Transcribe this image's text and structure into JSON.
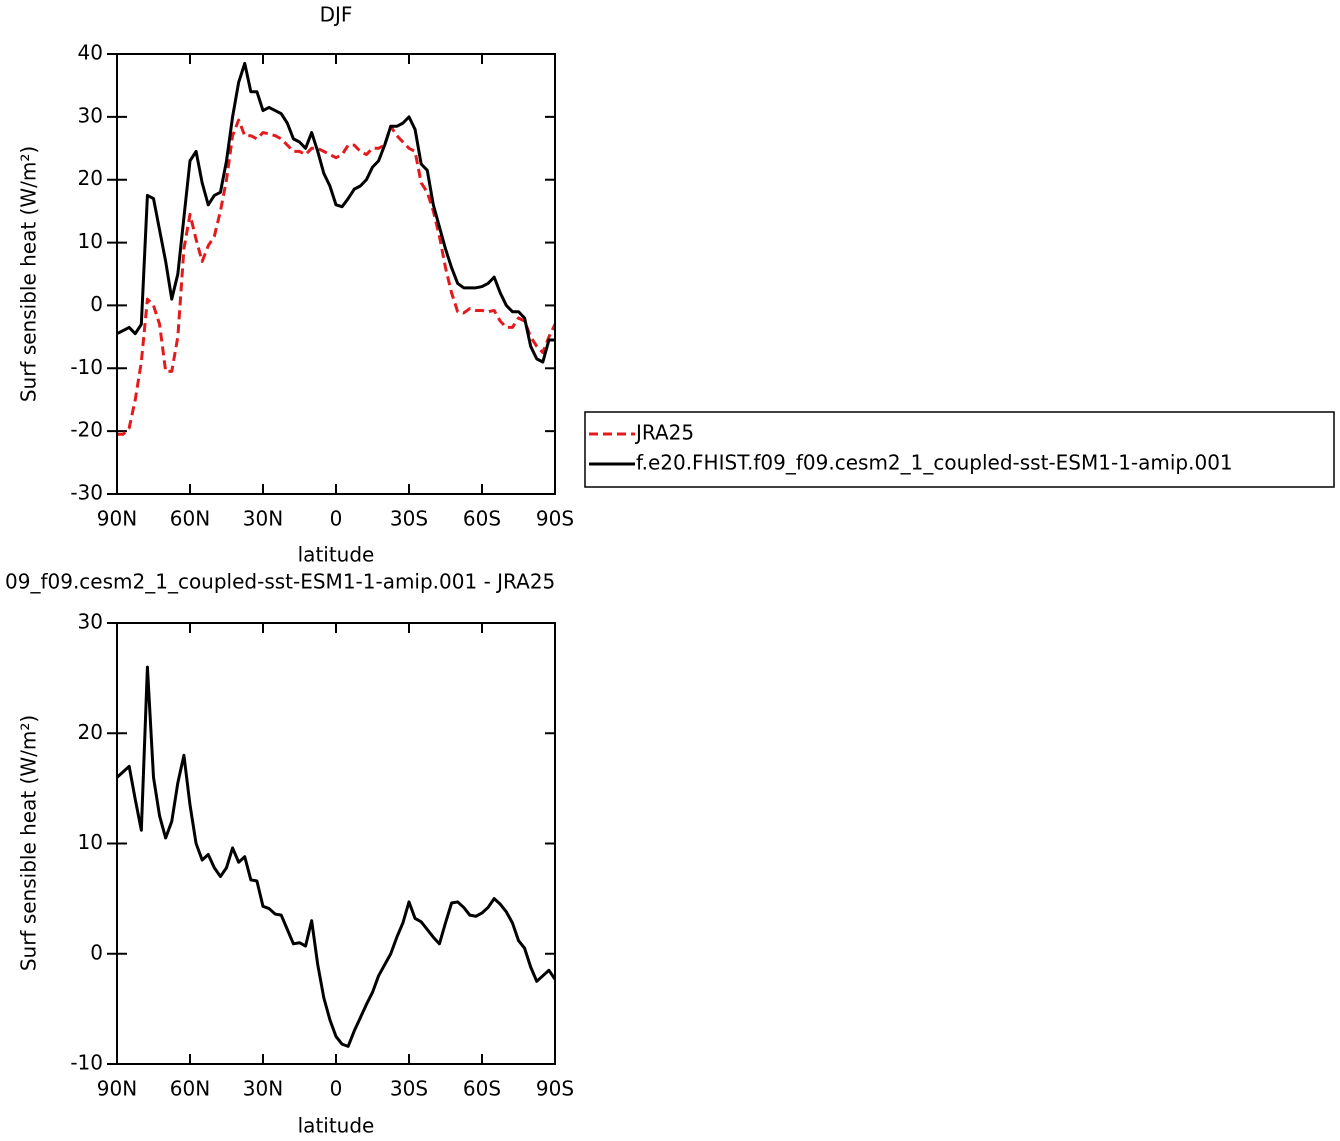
{
  "chart_data": [
    {
      "type": "line",
      "title": "DJF",
      "xlabel": "latitude",
      "ylabel": "Surf sensible heat (W/m²)",
      "x": [
        90,
        87.5,
        85,
        82.5,
        80,
        77.5,
        75,
        72.5,
        70,
        67.5,
        65,
        62.5,
        60,
        57.5,
        55,
        52.5,
        50,
        47.5,
        45,
        42.5,
        40,
        37.5,
        35,
        32.5,
        30,
        27.5,
        25,
        22.5,
        20,
        17.5,
        15,
        12.5,
        10,
        7.5,
        5,
        2.5,
        0,
        -2.5,
        -5,
        -7.5,
        -10,
        -12.5,
        -15,
        -17.5,
        -20,
        -22.5,
        -25,
        -27.5,
        -30,
        -32.5,
        -35,
        -37.5,
        -40,
        -42.5,
        -45,
        -47.5,
        -50,
        -52.5,
        -55,
        -57.5,
        -60,
        -62.5,
        -65,
        -67.5,
        -70,
        -72.5,
        -75,
        -77.5,
        -80,
        -82.5,
        -85,
        -87.5,
        -90
      ],
      "series": [
        {
          "name": "JRA25",
          "color": "#e41a1c",
          "dash": true,
          "values": [
            -20.5,
            -20.5,
            -19.5,
            -15,
            -9,
            1,
            0,
            -3,
            -10.5,
            -10.5,
            -5,
            9,
            14.5,
            10.5,
            7,
            9.5,
            11,
            15,
            20,
            27,
            29.5,
            27,
            27,
            26.5,
            27.5,
            27.3,
            27,
            26.5,
            25.5,
            24.5,
            24.5,
            24,
            25,
            25,
            24.5,
            24,
            23.5,
            24,
            25.5,
            25.5,
            24.5,
            24,
            25,
            25,
            25.5,
            28.5,
            27,
            26,
            25,
            24.5,
            19.5,
            18,
            15,
            11,
            6,
            2,
            -1,
            -1.2,
            -0.5,
            -0.8,
            -0.8,
            -1,
            -0.8,
            -2.5,
            -3.5,
            -3.5,
            -2,
            -2.5,
            -5,
            -6.5,
            -7.5,
            -5,
            -3
          ]
        },
        {
          "name": "f.e20.FHIST.f09_f09.cesm2_1_coupled-sst-ESM1-1-amip.001",
          "color": "#000000",
          "dash": false,
          "values": [
            -4.5,
            -4,
            -3.5,
            -4.5,
            -3,
            17.5,
            17,
            12,
            7,
            1,
            5,
            14,
            23,
            24.5,
            19.5,
            16,
            17.5,
            18,
            23,
            30,
            35.5,
            38.5,
            34,
            34,
            31,
            31.5,
            31,
            30.5,
            29,
            26.5,
            26,
            25,
            27.5,
            24.5,
            21,
            19,
            16,
            15.7,
            17,
            18.5,
            19,
            20,
            22,
            23,
            25.5,
            28.5,
            28.5,
            29,
            30,
            28,
            22.5,
            21.5,
            16,
            12.5,
            9,
            6,
            3.5,
            2.8,
            2.8,
            2.8,
            3,
            3.5,
            4.5,
            2,
            0,
            -1,
            -1,
            -2,
            -6.5,
            -8.5,
            -9,
            -5.5,
            -5.5
          ]
        }
      ],
      "xlim": [
        90,
        -90
      ],
      "xticks": [
        {
          "value": 90,
          "label": "90N"
        },
        {
          "value": 60,
          "label": "60N"
        },
        {
          "value": 30,
          "label": "30N"
        },
        0,
        {
          "value": -30,
          "label": "30S"
        },
        {
          "value": -60,
          "label": "60S"
        },
        {
          "value": -90,
          "label": "90S"
        }
      ],
      "ylim": [
        -30,
        40
      ],
      "yticks": [
        -30,
        -20,
        -10,
        0,
        10,
        20,
        30,
        40
      ],
      "legend": "right"
    },
    {
      "type": "line",
      "title": "09_f09.cesm2_1_coupled-sst-ESM1-1-amip.001 - JRA25",
      "xlabel": "latitude",
      "ylabel": "Surf sensible heat (W/m²)",
      "x": [
        90,
        87.5,
        85,
        82.5,
        80,
        77.5,
        75,
        72.5,
        70,
        67.5,
        65,
        62.5,
        60,
        57.5,
        55,
        52.5,
        50,
        47.5,
        45,
        42.5,
        40,
        37.5,
        35,
        32.5,
        30,
        27.5,
        25,
        22.5,
        20,
        17.5,
        15,
        12.5,
        10,
        7.5,
        5,
        2.5,
        0,
        -2.5,
        -5,
        -7.5,
        -10,
        -12.5,
        -15,
        -17.5,
        -20,
        -22.5,
        -25,
        -27.5,
        -30,
        -32.5,
        -35,
        -37.5,
        -40,
        -42.5,
        -45,
        -47.5,
        -50,
        -52.5,
        -55,
        -57.5,
        -60,
        -62.5,
        -65,
        -67.5,
        -70,
        -72.5,
        -75,
        -77.5,
        -80,
        -82.5,
        -85,
        -87.5,
        -90
      ],
      "series": [
        {
          "color": "#000000",
          "dash": false,
          "values": [
            16,
            16.5,
            17,
            14,
            11.2,
            26,
            16,
            12.5,
            10.5,
            12,
            15.5,
            18,
            13.5,
            10,
            8.5,
            9,
            7.8,
            7,
            7.8,
            9.6,
            8.3,
            8.8,
            6.7,
            6.6,
            4.3,
            4.1,
            3.6,
            3.5,
            2.2,
            0.9,
            1,
            0.7,
            3,
            -1,
            -4,
            -6,
            -7.5,
            -8.2,
            -8.4,
            -7,
            -5.8,
            -4.6,
            -3.5,
            -2,
            -1,
            0,
            1.5,
            2.8,
            4.7,
            3.2,
            2.9,
            2.2,
            1.5,
            0.9,
            2.8,
            4.6,
            4.7,
            4.2,
            3.5,
            3.4,
            3.7,
            4.2,
            5,
            4.5,
            3.8,
            2.8,
            1.2,
            0.5,
            -1.2,
            -2.5,
            -2,
            -1.5,
            -2.3
          ]
        }
      ],
      "xlim": [
        90,
        -90
      ],
      "xticks": [
        {
          "value": 90,
          "label": "90N"
        },
        {
          "value": 60,
          "label": "60N"
        },
        {
          "value": 30,
          "label": "30N"
        },
        0,
        {
          "value": -30,
          "label": "30S"
        },
        {
          "value": -60,
          "label": "60S"
        },
        {
          "value": -90,
          "label": "90S"
        }
      ],
      "ylim": [
        -10,
        30
      ],
      "yticks": [
        -10,
        0,
        10,
        20,
        30
      ]
    }
  ]
}
